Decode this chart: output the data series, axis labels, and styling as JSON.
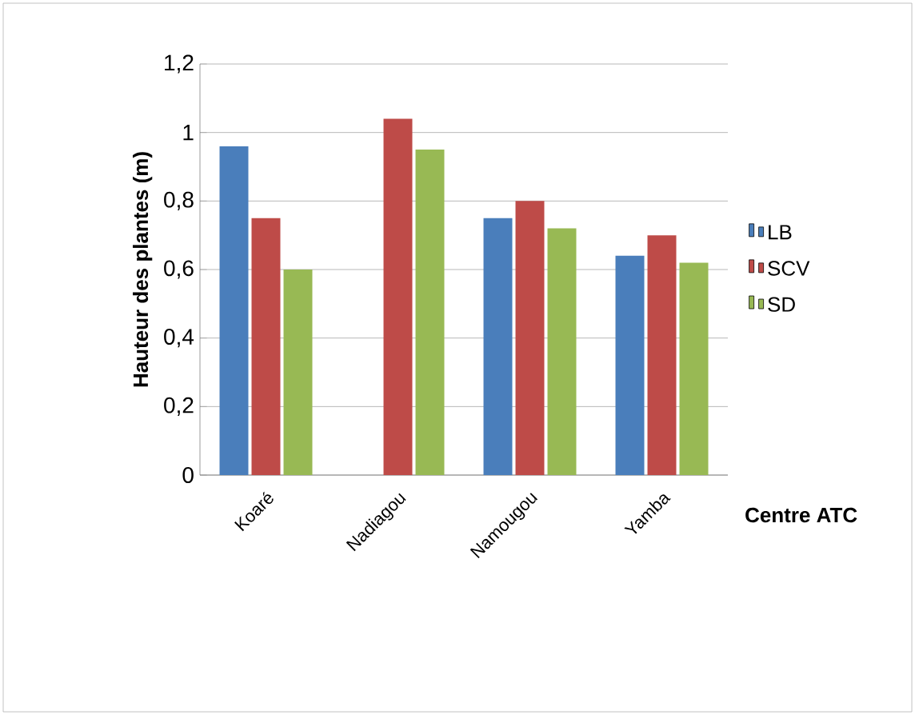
{
  "chart_data": {
    "type": "bar",
    "ylabel": "Hauteur des plantes (m)",
    "xlabel": "Centre ATC",
    "categories": [
      "Koaré",
      "Nadiagou",
      "Namougou",
      "Yamba"
    ],
    "series": [
      {
        "name": "LB",
        "color": "#4a7ebb",
        "values": [
          0.96,
          null,
          0.75,
          0.64
        ]
      },
      {
        "name": "SCV",
        "color": "#be4b48",
        "values": [
          0.75,
          1.04,
          0.8,
          0.7
        ]
      },
      {
        "name": "SD",
        "color": "#98b954",
        "values": [
          0.6,
          0.95,
          0.72,
          0.62
        ]
      }
    ],
    "ylim": [
      0,
      1.2
    ],
    "yticks": [
      {
        "value": 0,
        "label": "0"
      },
      {
        "value": 0.2,
        "label": "0,2"
      },
      {
        "value": 0.4,
        "label": "0,4"
      },
      {
        "value": 0.6,
        "label": "0,6"
      },
      {
        "value": 0.8,
        "label": "0,8"
      },
      {
        "value": 1,
        "label": "1"
      },
      {
        "value": 1.2,
        "label": "1,2"
      }
    ],
    "grid": "y",
    "legend": "right"
  }
}
